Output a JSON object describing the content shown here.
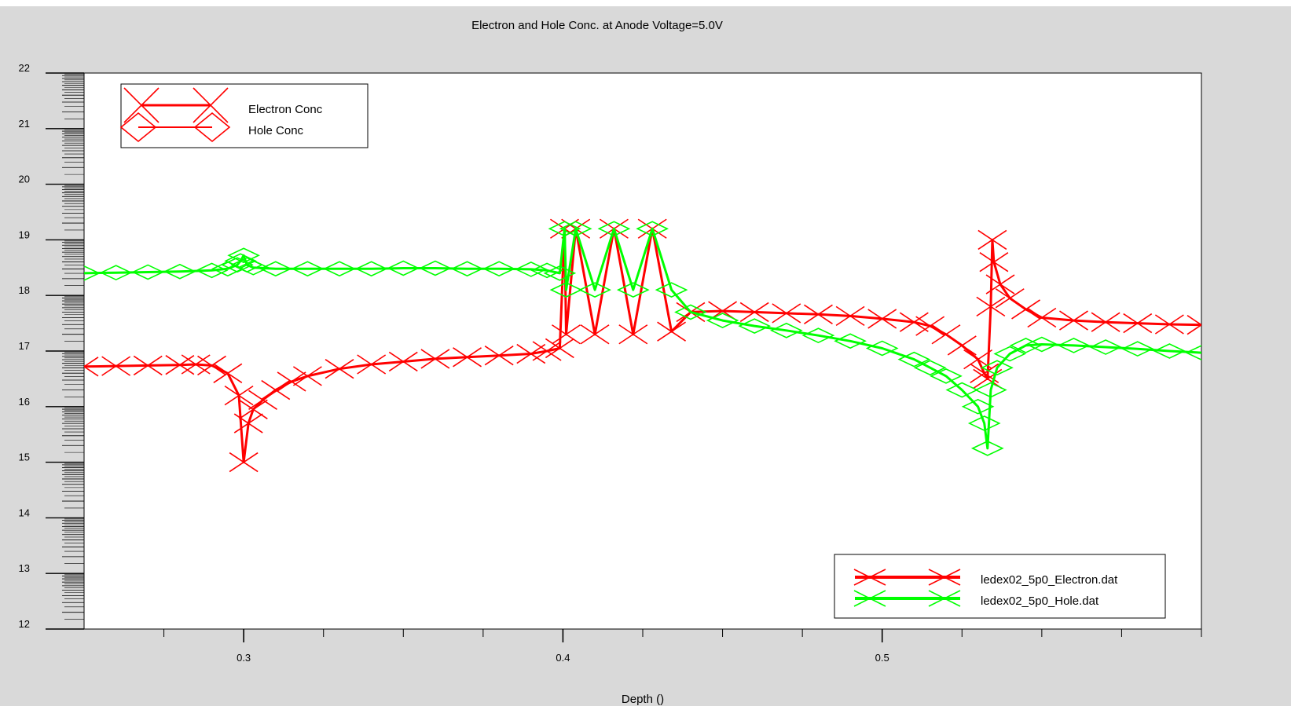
{
  "chart_data": {
    "type": "scatter",
    "title": "Electron and Hole Conc. at Anode Voltage=5.0V",
    "xlabel": "Depth ()",
    "ylabel": "",
    "xlim": [
      0.25,
      0.6
    ],
    "ylim": [
      12,
      22
    ],
    "x_ticks": [
      0.3,
      0.4,
      0.5
    ],
    "y_ticks": [
      12,
      13,
      14,
      15,
      16,
      17,
      18,
      19,
      20,
      21,
      22
    ],
    "grid": false,
    "colors": {
      "electron": "#ff0000",
      "hole": "#00ff00",
      "axis": "#000000"
    },
    "legend_main": {
      "placement": "top-left",
      "entries": [
        {
          "label": "Electron Conc",
          "marker": "x-cross"
        },
        {
          "label": "Hole Conc",
          "marker": "diamond"
        }
      ]
    },
    "legend_files": {
      "placement": "bottom-right",
      "entries": [
        {
          "label": "ledex02_5p0_Electron.dat",
          "color": "#ff0000"
        },
        {
          "label": "ledex02_5p0_Hole.dat",
          "color": "#00ff00"
        }
      ]
    },
    "series": [
      {
        "name": "ledex02_5p0_Electron.dat",
        "color": "#ff0000",
        "marker": "x-cross",
        "x": [
          0.25,
          0.26,
          0.27,
          0.28,
          0.285,
          0.29,
          0.295,
          0.2985,
          0.3,
          0.3015,
          0.303,
          0.306,
          0.31,
          0.315,
          0.32,
          0.33,
          0.34,
          0.35,
          0.36,
          0.37,
          0.38,
          0.39,
          0.395,
          0.399,
          0.4005,
          0.401,
          0.404,
          0.41,
          0.416,
          0.422,
          0.428,
          0.434,
          0.44,
          0.45,
          0.46,
          0.47,
          0.48,
          0.49,
          0.5,
          0.51,
          0.515,
          0.52,
          0.525,
          0.53,
          0.532,
          0.533,
          0.534,
          0.5345,
          0.535,
          0.537,
          0.54,
          0.545,
          0.55,
          0.56,
          0.57,
          0.58,
          0.59,
          0.6
        ],
        "y": [
          16.72,
          16.73,
          16.74,
          16.75,
          16.76,
          16.74,
          16.6,
          16.2,
          15.0,
          15.7,
          15.95,
          16.12,
          16.3,
          16.45,
          16.55,
          16.68,
          16.76,
          16.81,
          16.86,
          16.89,
          16.92,
          16.95,
          17.0,
          17.05,
          19.2,
          17.3,
          19.2,
          17.3,
          19.2,
          17.3,
          19.2,
          17.35,
          17.7,
          17.72,
          17.7,
          17.68,
          17.66,
          17.63,
          17.58,
          17.52,
          17.45,
          17.3,
          17.1,
          16.85,
          16.6,
          16.5,
          17.8,
          19.0,
          18.6,
          18.2,
          17.95,
          17.75,
          17.6,
          17.55,
          17.52,
          17.5,
          17.48,
          17.47
        ]
      },
      {
        "name": "ledex02_5p0_Hole.dat",
        "color": "#00ff00",
        "marker": "diamond",
        "x": [
          0.25,
          0.26,
          0.27,
          0.28,
          0.29,
          0.295,
          0.298,
          0.299,
          0.3,
          0.301,
          0.303,
          0.31,
          0.32,
          0.33,
          0.34,
          0.35,
          0.36,
          0.37,
          0.38,
          0.39,
          0.395,
          0.399,
          0.4005,
          0.401,
          0.404,
          0.41,
          0.416,
          0.422,
          0.428,
          0.434,
          0.44,
          0.45,
          0.46,
          0.47,
          0.48,
          0.49,
          0.5,
          0.51,
          0.515,
          0.52,
          0.525,
          0.53,
          0.532,
          0.533,
          0.534,
          0.536,
          0.54,
          0.545,
          0.55,
          0.56,
          0.57,
          0.58,
          0.59,
          0.6
        ],
        "y": [
          18.4,
          18.41,
          18.42,
          18.43,
          18.45,
          18.48,
          18.55,
          18.62,
          18.72,
          18.55,
          18.5,
          18.48,
          18.48,
          18.48,
          18.48,
          18.49,
          18.49,
          18.48,
          18.48,
          18.47,
          18.45,
          18.4,
          19.2,
          18.1,
          19.2,
          18.1,
          19.2,
          18.1,
          19.2,
          18.1,
          17.7,
          17.55,
          17.45,
          17.37,
          17.28,
          17.18,
          17.05,
          16.85,
          16.7,
          16.55,
          16.3,
          16.0,
          15.7,
          15.25,
          16.3,
          16.7,
          16.95,
          17.1,
          17.12,
          17.1,
          17.07,
          17.04,
          17.0,
          16.97
        ]
      }
    ]
  }
}
